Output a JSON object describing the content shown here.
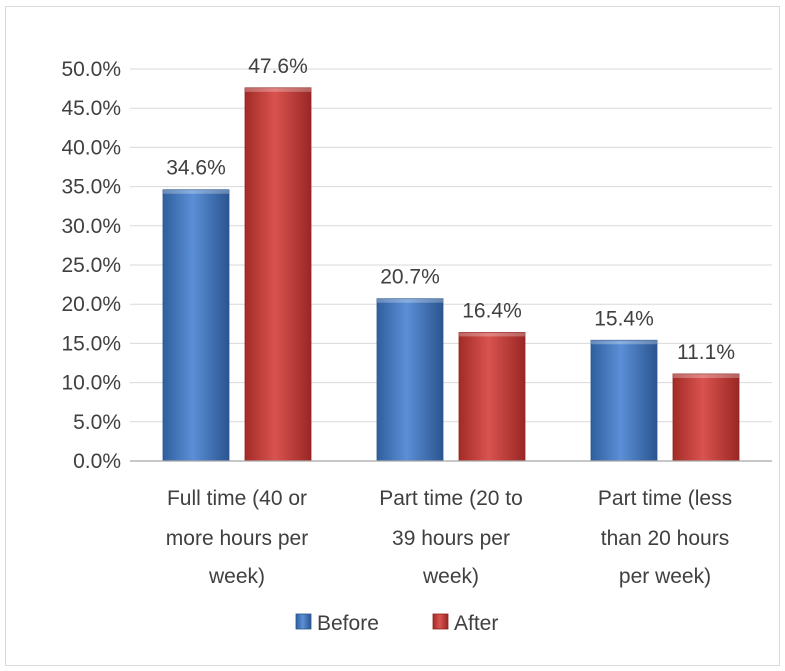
{
  "chart_data": {
    "type": "bar",
    "title": "",
    "xlabel": "",
    "ylabel": "",
    "categories": [
      [
        "Full time (40 or",
        "more hours per",
        "week)"
      ],
      [
        "Part time (20 to",
        "39 hours per",
        "week)"
      ],
      [
        "Part time (less",
        "than 20 hours",
        "per week)"
      ]
    ],
    "series": [
      {
        "name": "Before",
        "color": "#4f81bd",
        "values": [
          34.6,
          20.7,
          15.4
        ]
      },
      {
        "name": "After",
        "color": "#c0504d",
        "values": [
          47.6,
          16.4,
          11.1
        ]
      }
    ],
    "data_labels": [
      [
        "34.6%",
        "20.7%",
        "15.4%"
      ],
      [
        "47.6%",
        "16.4%",
        "11.1%"
      ]
    ],
    "ylim": [
      0,
      50
    ],
    "ytick_labels": [
      "0.0%",
      "5.0%",
      "10.0%",
      "15.0%",
      "20.0%",
      "25.0%",
      "30.0%",
      "35.0%",
      "40.0%",
      "45.0%",
      "50.0%"
    ],
    "grid": true,
    "legend": "bottom"
  }
}
